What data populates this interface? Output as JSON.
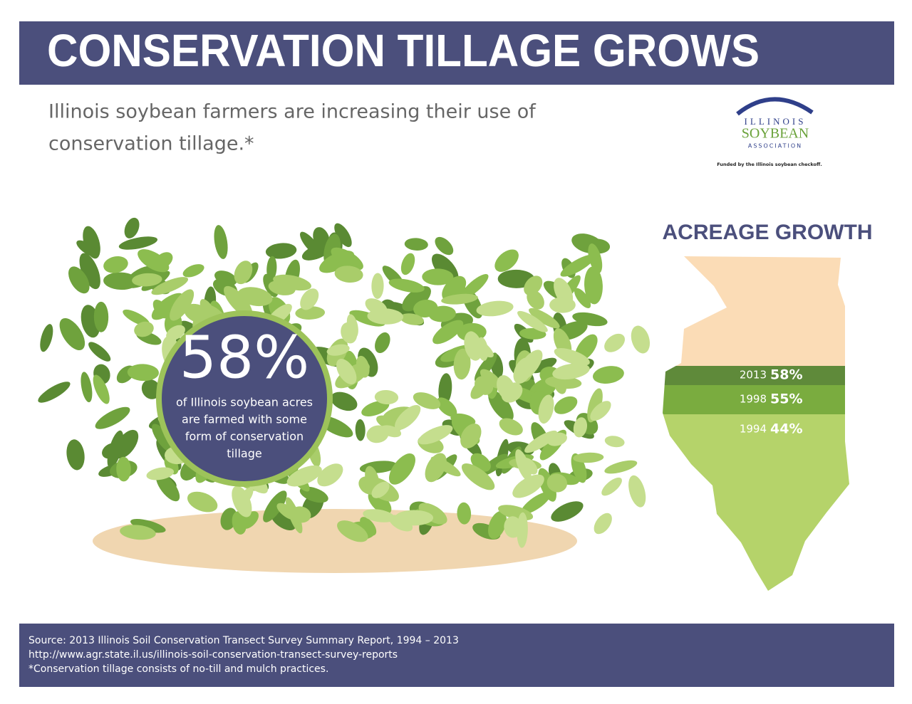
{
  "header": {
    "title": "CONSERVATION TILLAGE GROWS",
    "subtitle_lines": [
      "Illinois soybean farmers are increasing their use of",
      "conservation tillage.*"
    ]
  },
  "logo": {
    "top": "ILLINOIS",
    "middle": "SOYBEAN",
    "bottom": "ASSOCIATION",
    "funded": "Funded by the Illinois soybean checkoff."
  },
  "highlight": {
    "value": "58%",
    "lines": [
      "of Illinois soybean acres",
      "are farmed with some",
      "form of conservation",
      "tillage"
    ]
  },
  "acreage": {
    "title": "ACREAGE GROWTH",
    "rows": [
      {
        "year": "2013",
        "value": "58%"
      },
      {
        "year": "1998",
        "value": "55%"
      },
      {
        "year": "1994",
        "value": "44%"
      }
    ]
  },
  "footer": {
    "lines": [
      "Source: 2013 Illinois Soil Conservation Transect Survey Summary Report, 1994 – 2013",
      "http://www.agr.state.il.us/illinois-soil-conservation-transect-survey-reports",
      "*Conservation tillage consists of no-till and mulch practices."
    ]
  }
}
